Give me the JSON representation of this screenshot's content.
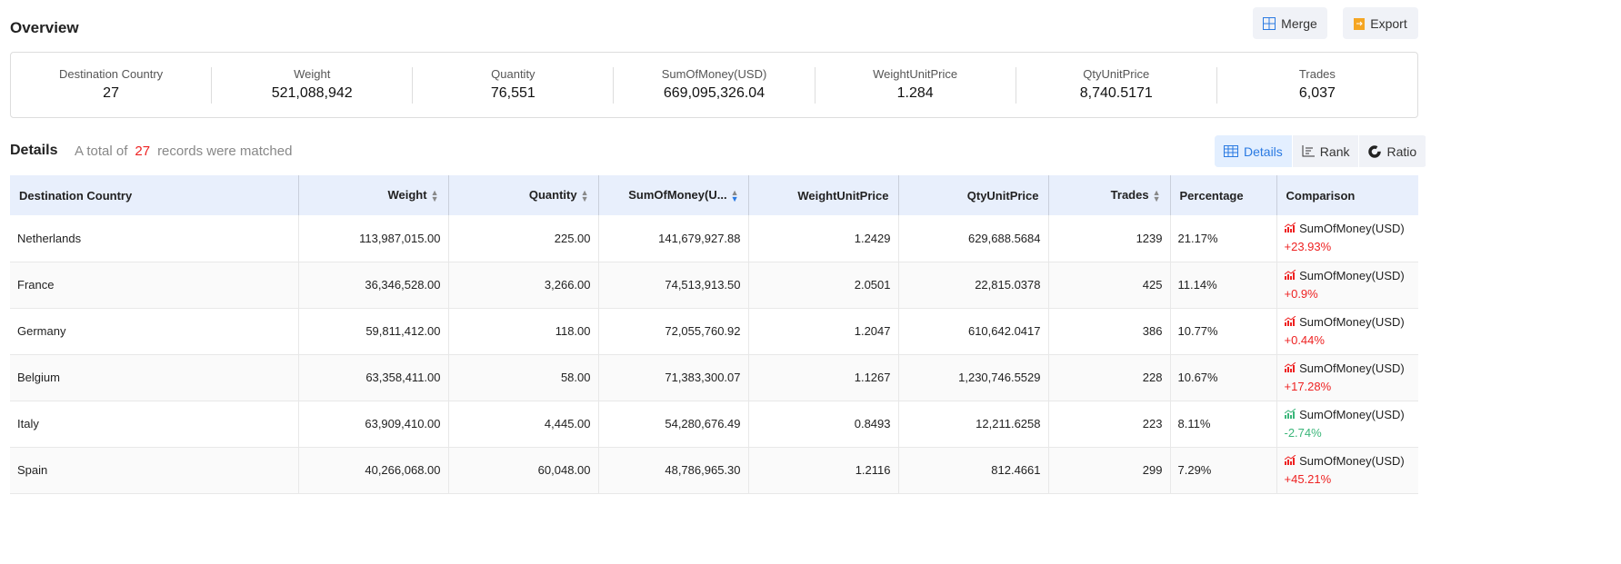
{
  "overview": {
    "title": "Overview",
    "merge": "Merge",
    "export": "Export",
    "stats": [
      {
        "label": "Destination Country",
        "value": "27"
      },
      {
        "label": "Weight",
        "value": "521,088,942"
      },
      {
        "label": "Quantity",
        "value": "76,551"
      },
      {
        "label": "SumOfMoney(USD)",
        "value": "669,095,326.04"
      },
      {
        "label": "WeightUnitPrice",
        "value": "1.284"
      },
      {
        "label": "QtyUnitPrice",
        "value": "8,740.5171"
      },
      {
        "label": "Trades",
        "value": "6,037"
      }
    ]
  },
  "details": {
    "title": "Details",
    "prefix": "A total of",
    "count": "27",
    "suffix": "records were matched",
    "views": [
      "Details",
      "Rank",
      "Ratio"
    ],
    "columns": [
      "Destination Country",
      "Weight",
      "Quantity",
      "SumOfMoney(U...",
      "WeightUnitPrice",
      "QtyUnitPrice",
      "Trades",
      "Percentage",
      "Comparison"
    ],
    "rows": [
      [
        "Netherlands",
        "113,987,015.00",
        "225.00",
        "141,679,927.88",
        "1.2429",
        "629,688.5684",
        "1239",
        "21.17%",
        "SumOfMoney(USD)",
        "+23.93%",
        "up"
      ],
      [
        "France",
        "36,346,528.00",
        "3,266.00",
        "74,513,913.50",
        "2.0501",
        "22,815.0378",
        "425",
        "11.14%",
        "SumOfMoney(USD)",
        "+0.9%",
        "up"
      ],
      [
        "Germany",
        "59,811,412.00",
        "118.00",
        "72,055,760.92",
        "1.2047",
        "610,642.0417",
        "386",
        "10.77%",
        "SumOfMoney(USD)",
        "+0.44%",
        "up"
      ],
      [
        "Belgium",
        "63,358,411.00",
        "58.00",
        "71,383,300.07",
        "1.1267",
        "1,230,746.5529",
        "228",
        "10.67%",
        "SumOfMoney(USD)",
        "+17.28%",
        "up"
      ],
      [
        "Italy",
        "63,909,410.00",
        "4,445.00",
        "54,280,676.49",
        "0.8493",
        "12,211.6258",
        "223",
        "8.11%",
        "SumOfMoney(USD)",
        "-2.74%",
        "down"
      ],
      [
        "Spain",
        "40,266,068.00",
        "60,048.00",
        "48,786,965.30",
        "1.2116",
        "812.4661",
        "299",
        "7.29%",
        "SumOfMoney(USD)",
        "+45.21%",
        "up"
      ]
    ]
  }
}
